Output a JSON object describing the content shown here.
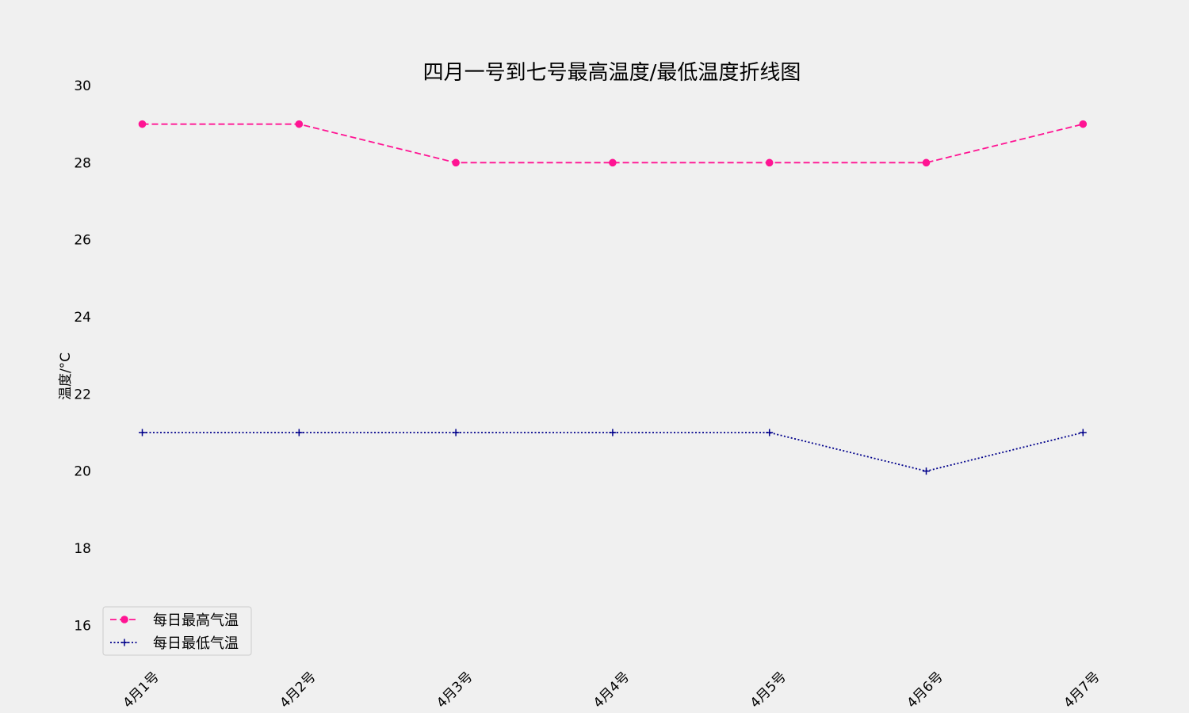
{
  "chart_data": {
    "type": "line",
    "title": "四月一号到七号最高温度/最低温度折线图",
    "xlabel": "",
    "ylabel": "温度/°C",
    "categories": [
      "4月1号",
      "4月2号",
      "4月3号",
      "4月4号",
      "4月5号",
      "4月6号",
      "4月7号"
    ],
    "ylim": [
      15,
      30
    ],
    "yticks": [
      16,
      18,
      20,
      22,
      24,
      26,
      28,
      30
    ],
    "grid": false,
    "legend_position": "lower-left",
    "series": [
      {
        "name": "每日最高气温",
        "values": [
          29,
          29,
          28,
          28,
          28,
          28,
          29
        ],
        "color": "#ff1493",
        "line_style": "dashed",
        "marker": "circle"
      },
      {
        "name": "每日最低气温",
        "values": [
          21,
          21,
          21,
          21,
          21,
          20,
          21
        ],
        "color": "#00008b",
        "line_style": "dotted",
        "marker": "plus"
      }
    ]
  }
}
